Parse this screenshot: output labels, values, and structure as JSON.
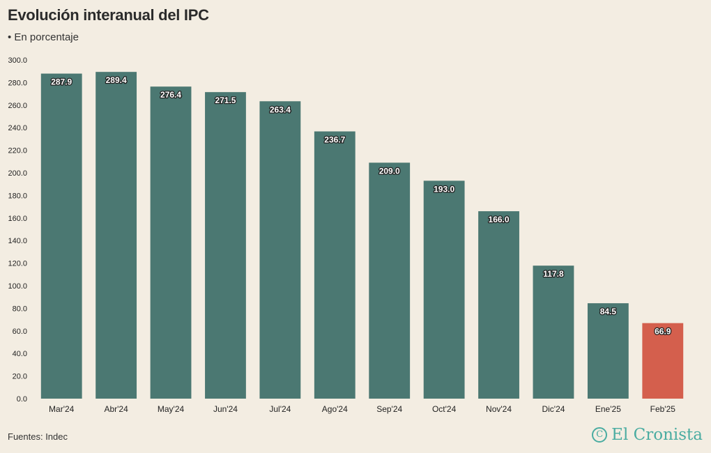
{
  "header": {
    "title": "Evolución interanual del IPC",
    "subtitle": "• En porcentaje"
  },
  "footer": {
    "source": "Fuentes: Indec",
    "logo_text": "El Cronista",
    "logo_mark": "C"
  },
  "colors": {
    "background": "#f3ede2",
    "bar": "#4b7872",
    "highlight": "#d45f4d",
    "logo": "#4aaca1"
  },
  "chart_data": {
    "type": "bar",
    "categories": [
      "Mar'24",
      "Abr'24",
      "May'24",
      "Jun'24",
      "Jul'24",
      "Ago'24",
      "Sep'24",
      "Oct'24",
      "Nov'24",
      "Dic'24",
      "Ene'25",
      "Feb'25"
    ],
    "values": [
      287.9,
      289.4,
      276.4,
      271.5,
      263.4,
      236.7,
      209.0,
      193.0,
      166.0,
      117.8,
      84.5,
      66.9
    ],
    "value_labels": [
      "287.9",
      "289.4",
      "276.4",
      "271.5",
      "263.4",
      "236.7",
      "209.0",
      "193.0",
      "166.0",
      "117.8",
      "84.5",
      "66.9"
    ],
    "highlight_index": 11,
    "ylim": [
      0,
      300
    ],
    "yticks": [
      "0.0",
      "20.0",
      "40.0",
      "60.0",
      "80.0",
      "100.0",
      "120.0",
      "140.0",
      "160.0",
      "180.0",
      "200.0",
      "220.0",
      "240.0",
      "260.0",
      "280.0",
      "300.0"
    ],
    "grid": false,
    "legend": "none"
  }
}
